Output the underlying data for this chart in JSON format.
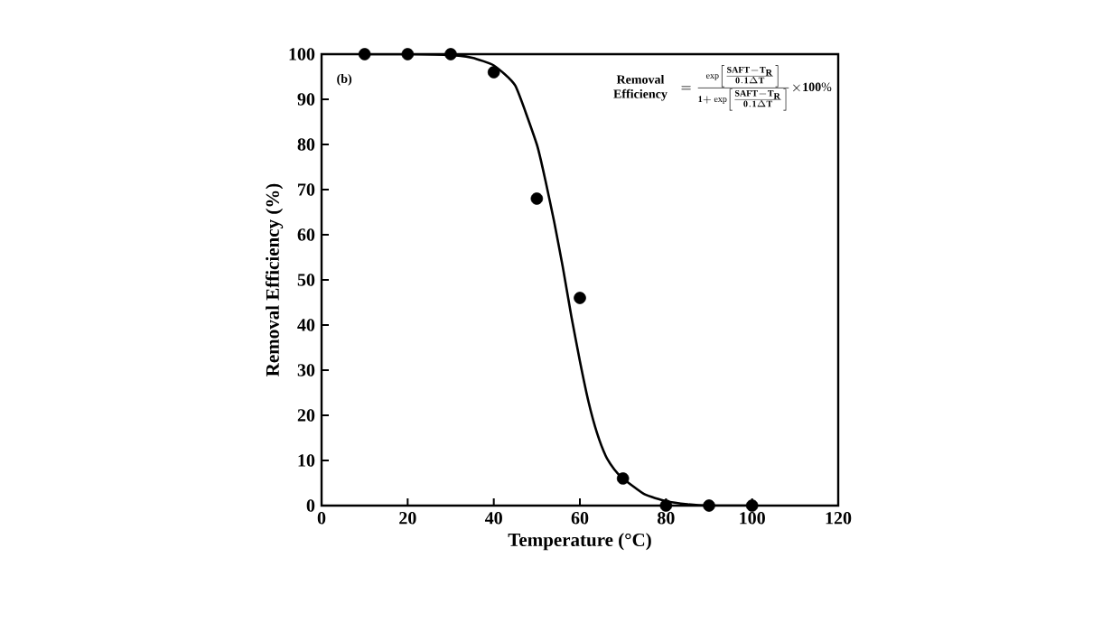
{
  "chart_data": {
    "type": "scatter",
    "xlabel": "Temperature (°C)",
    "ylabel": "Removal Efficiency (%)",
    "xlim": [
      0,
      120
    ],
    "ylim": [
      0,
      100
    ],
    "xticks": [
      0,
      20,
      40,
      60,
      80,
      100,
      120
    ],
    "yticks": [
      0,
      10,
      20,
      30,
      40,
      50,
      60,
      70,
      80,
      90,
      100
    ],
    "grid": false,
    "annotations": [
      "(b)",
      "\\begin{array}{c}\\mathbf{Removal}\\\\ \\mathbf{Efficiency}\\end{array}=\\frac{\\exp\\left[\\frac{\\mathbf{SAFT-T_R}}{\\mathbf{0.1}\\Delta\\mathbf{T}}\\right]}{\\mathbf{1+}\\exp\\left[\\frac{\\mathbf{SAFT-T_R}}{\\mathbf{0.1}\\Delta\\mathbf{T}}\\right]}\\mathbf{\\times 100\\%}"
    ],
    "series": [
      {
        "marker": "circle",
        "color": "#000000",
        "x": [
          10,
          20,
          30,
          40,
          50,
          60,
          70,
          80,
          90,
          100
        ],
        "values": [
          100,
          100,
          100,
          96,
          68,
          46,
          6,
          0,
          0,
          0
        ]
      },
      {
        "type": "line",
        "marker": "none",
        "color": "#000000",
        "line_style": "solid",
        "x": [
          10,
          20,
          30,
          35,
          40,
          45,
          50,
          52,
          54,
          56,
          58,
          60,
          62,
          64,
          66,
          68,
          70,
          75,
          80,
          85,
          90,
          100
        ],
        "values": [
          100,
          100,
          99.8,
          99.2,
          97.5,
          93,
          80,
          72,
          63,
          53,
          42,
          32,
          23,
          16,
          11,
          8,
          6,
          2.5,
          1,
          0.3,
          0,
          0
        ]
      }
    ]
  }
}
